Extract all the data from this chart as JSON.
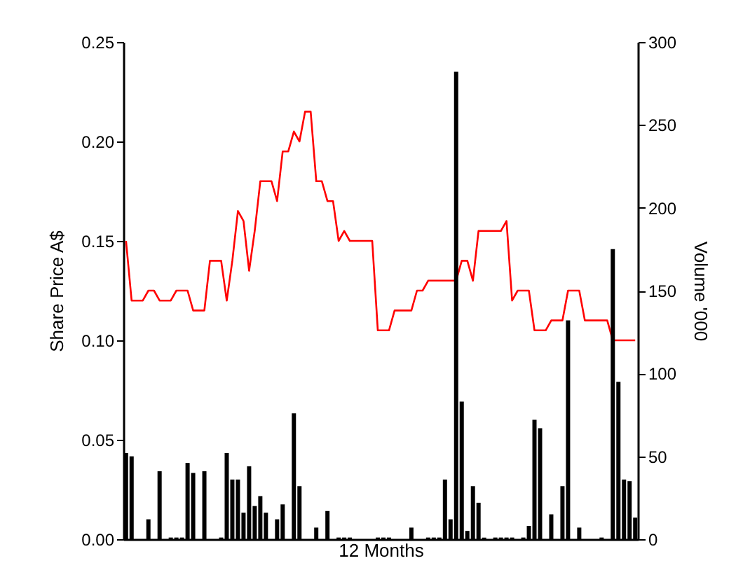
{
  "chart_data": {
    "type": "bar",
    "xlabel": "12 Months",
    "ylabel": "Share Price A$",
    "y2label": "Volume '000",
    "categories": [
      null,
      null,
      null,
      null,
      null,
      null,
      null,
      null,
      null,
      null,
      null,
      null,
      null,
      null,
      null,
      null,
      null,
      null,
      null,
      null,
      null,
      null,
      null,
      null,
      null,
      null,
      null,
      null,
      null,
      null,
      null,
      null,
      null,
      null,
      null,
      null,
      null,
      null,
      null,
      null,
      null,
      null,
      null,
      null,
      null,
      null,
      null,
      null,
      null,
      null,
      null,
      null,
      null,
      null,
      null,
      null,
      null,
      null,
      null,
      null,
      null,
      null,
      null,
      null,
      null,
      null,
      null,
      null,
      null,
      null,
      null,
      null,
      null,
      null,
      null,
      null,
      null,
      null,
      null,
      null,
      null,
      null,
      null,
      null,
      null,
      null,
      null,
      null,
      null,
      null,
      null,
      null
    ],
    "series": [
      {
        "type": "line",
        "color": "#ff0000",
        "values": [
          0.15,
          0.12,
          0.12,
          0.12,
          0.125,
          0.125,
          0.12,
          0.12,
          0.12,
          0.125,
          0.125,
          0.125,
          0.115,
          0.115,
          0.115,
          0.14,
          0.14,
          0.14,
          0.12,
          0.14,
          0.165,
          0.16,
          0.135,
          0.155,
          0.18,
          0.18,
          0.18,
          0.17,
          0.195,
          0.195,
          0.205,
          0.2,
          0.215,
          0.215,
          0.18,
          0.18,
          0.17,
          0.17,
          0.15,
          0.155,
          0.15,
          0.15,
          0.15,
          0.15,
          0.15,
          0.105,
          0.105,
          0.105,
          0.115,
          0.115,
          0.115,
          0.115,
          0.125,
          0.125,
          0.13,
          0.13,
          0.13,
          0.13,
          0.13,
          0.13,
          0.14,
          0.14,
          0.13,
          0.155,
          0.155,
          0.155,
          0.155,
          0.155,
          0.16,
          0.12,
          0.125,
          0.125,
          0.125,
          0.105,
          0.105,
          0.105,
          0.11,
          0.11,
          0.11,
          0.125,
          0.125,
          0.125,
          0.11,
          0.11,
          0.11,
          0.11,
          0.11,
          0.1,
          0.1,
          0.1,
          0.1,
          0.1
        ]
      },
      {
        "axis": "y2",
        "color": "#000000",
        "values": [
          52,
          50,
          null,
          null,
          12,
          null,
          41,
          null,
          1,
          1,
          1,
          46,
          40,
          null,
          41,
          null,
          null,
          1,
          52,
          36,
          36,
          16,
          44,
          20,
          26,
          16,
          null,
          12,
          21,
          null,
          76,
          32,
          null,
          null,
          7,
          null,
          17,
          null,
          1,
          1,
          1,
          null,
          null,
          null,
          null,
          1,
          1,
          1,
          null,
          null,
          null,
          7,
          null,
          null,
          1,
          1,
          1,
          36,
          12,
          282,
          83,
          5,
          32,
          22,
          1,
          null,
          1,
          1,
          1,
          1,
          null,
          1,
          8,
          72,
          67,
          null,
          15,
          null,
          32,
          132,
          null,
          7,
          null,
          null,
          null,
          1,
          null,
          175,
          95,
          36,
          35,
          13
        ]
      }
    ],
    "ylim": [
      0,
      0.25
    ],
    "yticks": [
      {
        "value": 0,
        "label": "0.00"
      },
      0.05,
      {
        "value": 0.1,
        "label": "0.10"
      },
      0.15,
      {
        "value": 0.2,
        "label": "0.20"
      },
      0.25
    ],
    "y2lim": [
      0,
      300
    ],
    "y2ticks": [
      0,
      50,
      100,
      150,
      200,
      250,
      300
    ],
    "grid": false
  }
}
